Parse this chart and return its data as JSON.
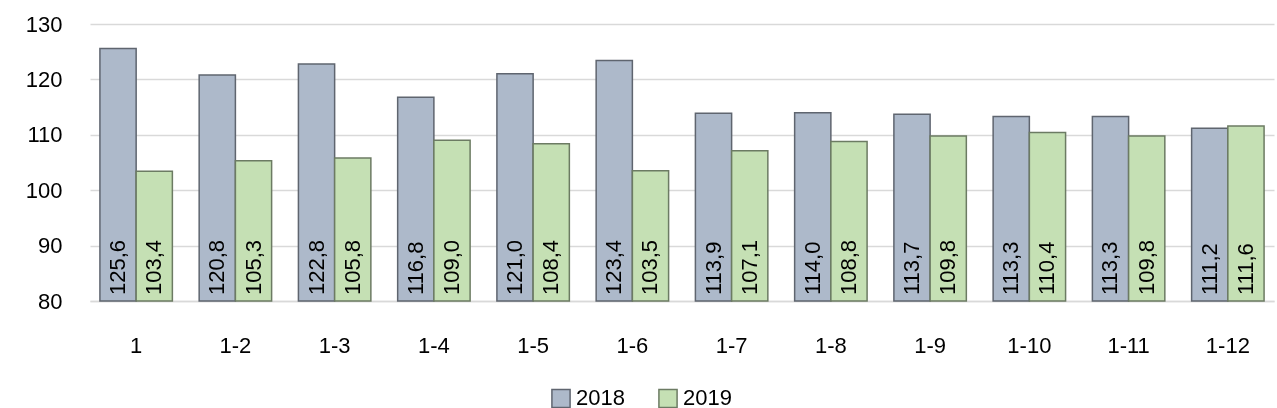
{
  "chart_data": {
    "type": "bar",
    "categories": [
      "1",
      "1-2",
      "1-3",
      "1-4",
      "1-5",
      "1-6",
      "1-7",
      "1-8",
      "1-9",
      "1-10",
      "1-11",
      "1-12"
    ],
    "series": [
      {
        "name": "2018",
        "color": "#adb9ca",
        "values": [
          125.6,
          120.8,
          122.8,
          116.8,
          121.0,
          123.4,
          113.9,
          114.0,
          113.7,
          113.3,
          113.3,
          111.2
        ],
        "value_labels": [
          "125,6",
          "120,8",
          "122,8",
          "116,8",
          "121,0",
          "123,4",
          "113,9",
          "114,0",
          "113,7",
          "113,3",
          "113,3",
          "111,2"
        ]
      },
      {
        "name": "2019",
        "color": "#c5e0b4",
        "values": [
          103.4,
          105.3,
          105.8,
          109.0,
          108.4,
          103.5,
          107.1,
          108.8,
          109.8,
          110.4,
          109.8,
          111.6
        ],
        "value_labels": [
          "103,4",
          "105,3",
          "105,8",
          "109,0",
          "108,4",
          "103,5",
          "107,1",
          "108,8",
          "109,8",
          "110,4",
          "109,8",
          "111,6"
        ]
      }
    ],
    "ylim": [
      80,
      130
    ],
    "yticks": [
      80,
      90,
      100,
      110,
      120,
      130
    ],
    "grid": "y",
    "legend": "bottom"
  }
}
